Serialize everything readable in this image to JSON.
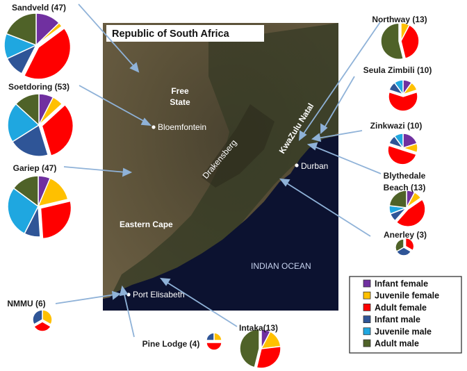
{
  "map": {
    "title": "Republic of South Africa",
    "places": {
      "free_state": [
        "Free",
        "State"
      ],
      "bloemfontein": "Bloemfontein",
      "drakensberg": "Drakensberg",
      "kwazulu_natal": "KwaZulu Natal",
      "durban": "Durban",
      "eastern_cape": "Eastern Cape",
      "indian_ocean": "INDIAN OCEAN",
      "port_elisabeth": "Port Elisabeth"
    },
    "colors": {
      "land_dark": "#3d3a2a",
      "land_light": "#7a6a4f",
      "ocean": "#0c1230",
      "arrow": "#8fb2d8"
    }
  },
  "legend": {
    "items": [
      {
        "label": "Infant female",
        "color": "#7030a0"
      },
      {
        "label": "Juvenile female",
        "color": "#ffc000"
      },
      {
        "label": "Adult female",
        "color": "#ff0000"
      },
      {
        "label": "Infant male",
        "color": "#2f5597"
      },
      {
        "label": "Juvenile male",
        "color": "#1fa7e0"
      },
      {
        "label": "Adult male",
        "color": "#4f6228"
      }
    ]
  },
  "sites": [
    {
      "id": "sandveld",
      "label": [
        "Sandveld (47)"
      ],
      "slices": [
        6,
        1,
        20,
        5,
        6,
        9
      ],
      "exploded": 2
    },
    {
      "id": "soetdoring",
      "label": [
        "Soetdoring (53)"
      ],
      "slices": [
        4,
        3,
        17,
        11,
        11,
        7
      ],
      "exploded": 2
    },
    {
      "id": "gariep",
      "label": [
        "Gariep (47)"
      ],
      "slices": [
        3,
        7,
        13,
        4,
        13,
        7
      ],
      "exploded": 2
    },
    {
      "id": "northway",
      "label": [
        "Northway (13)"
      ],
      "slices": [
        0,
        1,
        5,
        0,
        0,
        7
      ],
      "exploded": 5
    },
    {
      "id": "seula",
      "label": [
        "Seula Zimbili (10)"
      ],
      "slices": [
        1,
        1,
        6,
        1,
        1,
        0
      ],
      "exploded": 2
    },
    {
      "id": "zinkwazi",
      "label": [
        "Zinkwazi (10)"
      ],
      "slices": [
        2,
        1,
        5,
        1,
        1,
        0
      ],
      "exploded": 2
    },
    {
      "id": "blythedale",
      "label": [
        "Blythedale",
        "Beach (13)"
      ],
      "slices": [
        1,
        1,
        6,
        1,
        1,
        3
      ],
      "exploded": 2
    },
    {
      "id": "anerley",
      "label": [
        "Anerley (3)"
      ],
      "slices": [
        0,
        0,
        1,
        1,
        0,
        1
      ],
      "exploded": 2
    },
    {
      "id": "nmmu",
      "label": [
        "NMMU (6)"
      ],
      "slices": [
        0,
        2,
        2,
        2,
        0,
        0
      ],
      "exploded": 2
    },
    {
      "id": "pine",
      "label": [
        "Pine Lodge (4)"
      ],
      "slices": [
        0,
        1,
        2,
        1,
        0,
        0
      ],
      "exploded": 2
    },
    {
      "id": "intaka",
      "label": [
        "Intaka(13)"
      ],
      "slices": [
        1,
        2,
        4,
        0,
        0,
        6
      ],
      "exploded": 5
    }
  ]
}
